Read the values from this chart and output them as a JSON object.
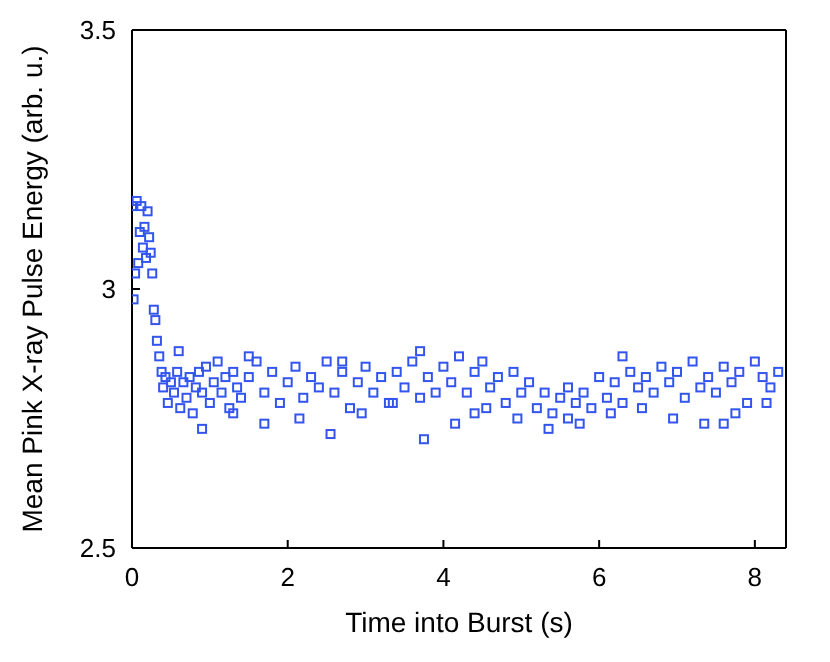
{
  "chart_data": {
    "type": "scatter",
    "xlabel": "Time into Burst (s)",
    "ylabel": "Mean Pink X-ray Pulse Energy (arb. u.)",
    "xlim": [
      0,
      8.4
    ],
    "ylim": [
      2.5,
      3.5
    ],
    "xticks": [
      0,
      2,
      4,
      6,
      8
    ],
    "yticks": [
      2.5,
      3,
      3.5
    ],
    "marker": "square",
    "grid": false,
    "series": [
      {
        "color": "#3355ee",
        "x": [
          0.0,
          0.02,
          0.04,
          0.06,
          0.08,
          0.1,
          0.12,
          0.14,
          0.16,
          0.18,
          0.2,
          0.22,
          0.24,
          0.26,
          0.28,
          0.3,
          0.32,
          0.35,
          0.38,
          0.4,
          0.43,
          0.46,
          0.5,
          0.54,
          0.58,
          0.62,
          0.66,
          0.7,
          0.74,
          0.78,
          0.82,
          0.86,
          0.9,
          0.95,
          1.0,
          1.05,
          1.1,
          1.15,
          1.2,
          1.25,
          1.3,
          1.35,
          1.4,
          1.5,
          1.6,
          1.7,
          1.8,
          1.9,
          2.0,
          2.1,
          2.2,
          2.3,
          2.4,
          2.5,
          2.6,
          2.7,
          2.8,
          2.9,
          3.0,
          3.1,
          3.2,
          3.3,
          3.4,
          3.5,
          3.6,
          3.7,
          3.8,
          3.9,
          4.0,
          4.1,
          4.2,
          4.3,
          4.4,
          4.5,
          4.6,
          4.7,
          4.8,
          4.9,
          5.0,
          5.1,
          5.2,
          5.3,
          5.4,
          5.5,
          5.6,
          5.7,
          5.8,
          5.9,
          6.0,
          6.1,
          6.2,
          6.3,
          6.4,
          6.5,
          6.6,
          6.7,
          6.8,
          6.9,
          7.0,
          7.1,
          7.2,
          7.3,
          7.4,
          7.5,
          7.6,
          7.7,
          7.8,
          7.9,
          8.0,
          8.1,
          8.2,
          8.3,
          0.6,
          0.9,
          1.3,
          1.7,
          2.15,
          2.55,
          2.95,
          3.35,
          3.75,
          4.15,
          4.55,
          4.95,
          5.35,
          5.75,
          6.15,
          6.55,
          6.95,
          7.35,
          7.75,
          8.15,
          1.5,
          2.7,
          3.7,
          4.4,
          5.6,
          6.3,
          7.6
        ],
        "values": [
          3.16,
          2.98,
          3.03,
          3.17,
          3.05,
          3.11,
          3.16,
          3.08,
          3.12,
          3.06,
          3.15,
          3.1,
          3.07,
          3.03,
          2.96,
          2.94,
          2.9,
          2.87,
          2.84,
          2.81,
          2.83,
          2.78,
          2.82,
          2.8,
          2.84,
          2.77,
          2.82,
          2.79,
          2.83,
          2.76,
          2.81,
          2.84,
          2.8,
          2.85,
          2.78,
          2.82,
          2.86,
          2.8,
          2.83,
          2.77,
          2.84,
          2.81,
          2.79,
          2.83,
          2.86,
          2.8,
          2.84,
          2.78,
          2.82,
          2.85,
          2.79,
          2.83,
          2.81,
          2.86,
          2.8,
          2.84,
          2.77,
          2.82,
          2.85,
          2.8,
          2.83,
          2.78,
          2.84,
          2.81,
          2.86,
          2.79,
          2.83,
          2.8,
          2.85,
          2.82,
          2.87,
          2.8,
          2.84,
          2.86,
          2.81,
          2.83,
          2.78,
          2.84,
          2.8,
          2.82,
          2.77,
          2.8,
          2.76,
          2.79,
          2.81,
          2.78,
          2.8,
          2.77,
          2.83,
          2.79,
          2.82,
          2.78,
          2.84,
          2.81,
          2.83,
          2.8,
          2.85,
          2.82,
          2.84,
          2.79,
          2.86,
          2.81,
          2.83,
          2.8,
          2.85,
          2.82,
          2.84,
          2.78,
          2.86,
          2.83,
          2.81,
          2.84,
          2.88,
          2.73,
          2.76,
          2.74,
          2.75,
          2.72,
          2.76,
          2.78,
          2.71,
          2.74,
          2.77,
          2.75,
          2.73,
          2.74,
          2.76,
          2.77,
          2.75,
          2.74,
          2.76,
          2.78,
          2.87,
          2.86,
          2.88,
          2.76,
          2.75,
          2.87,
          2.74
        ]
      }
    ]
  }
}
